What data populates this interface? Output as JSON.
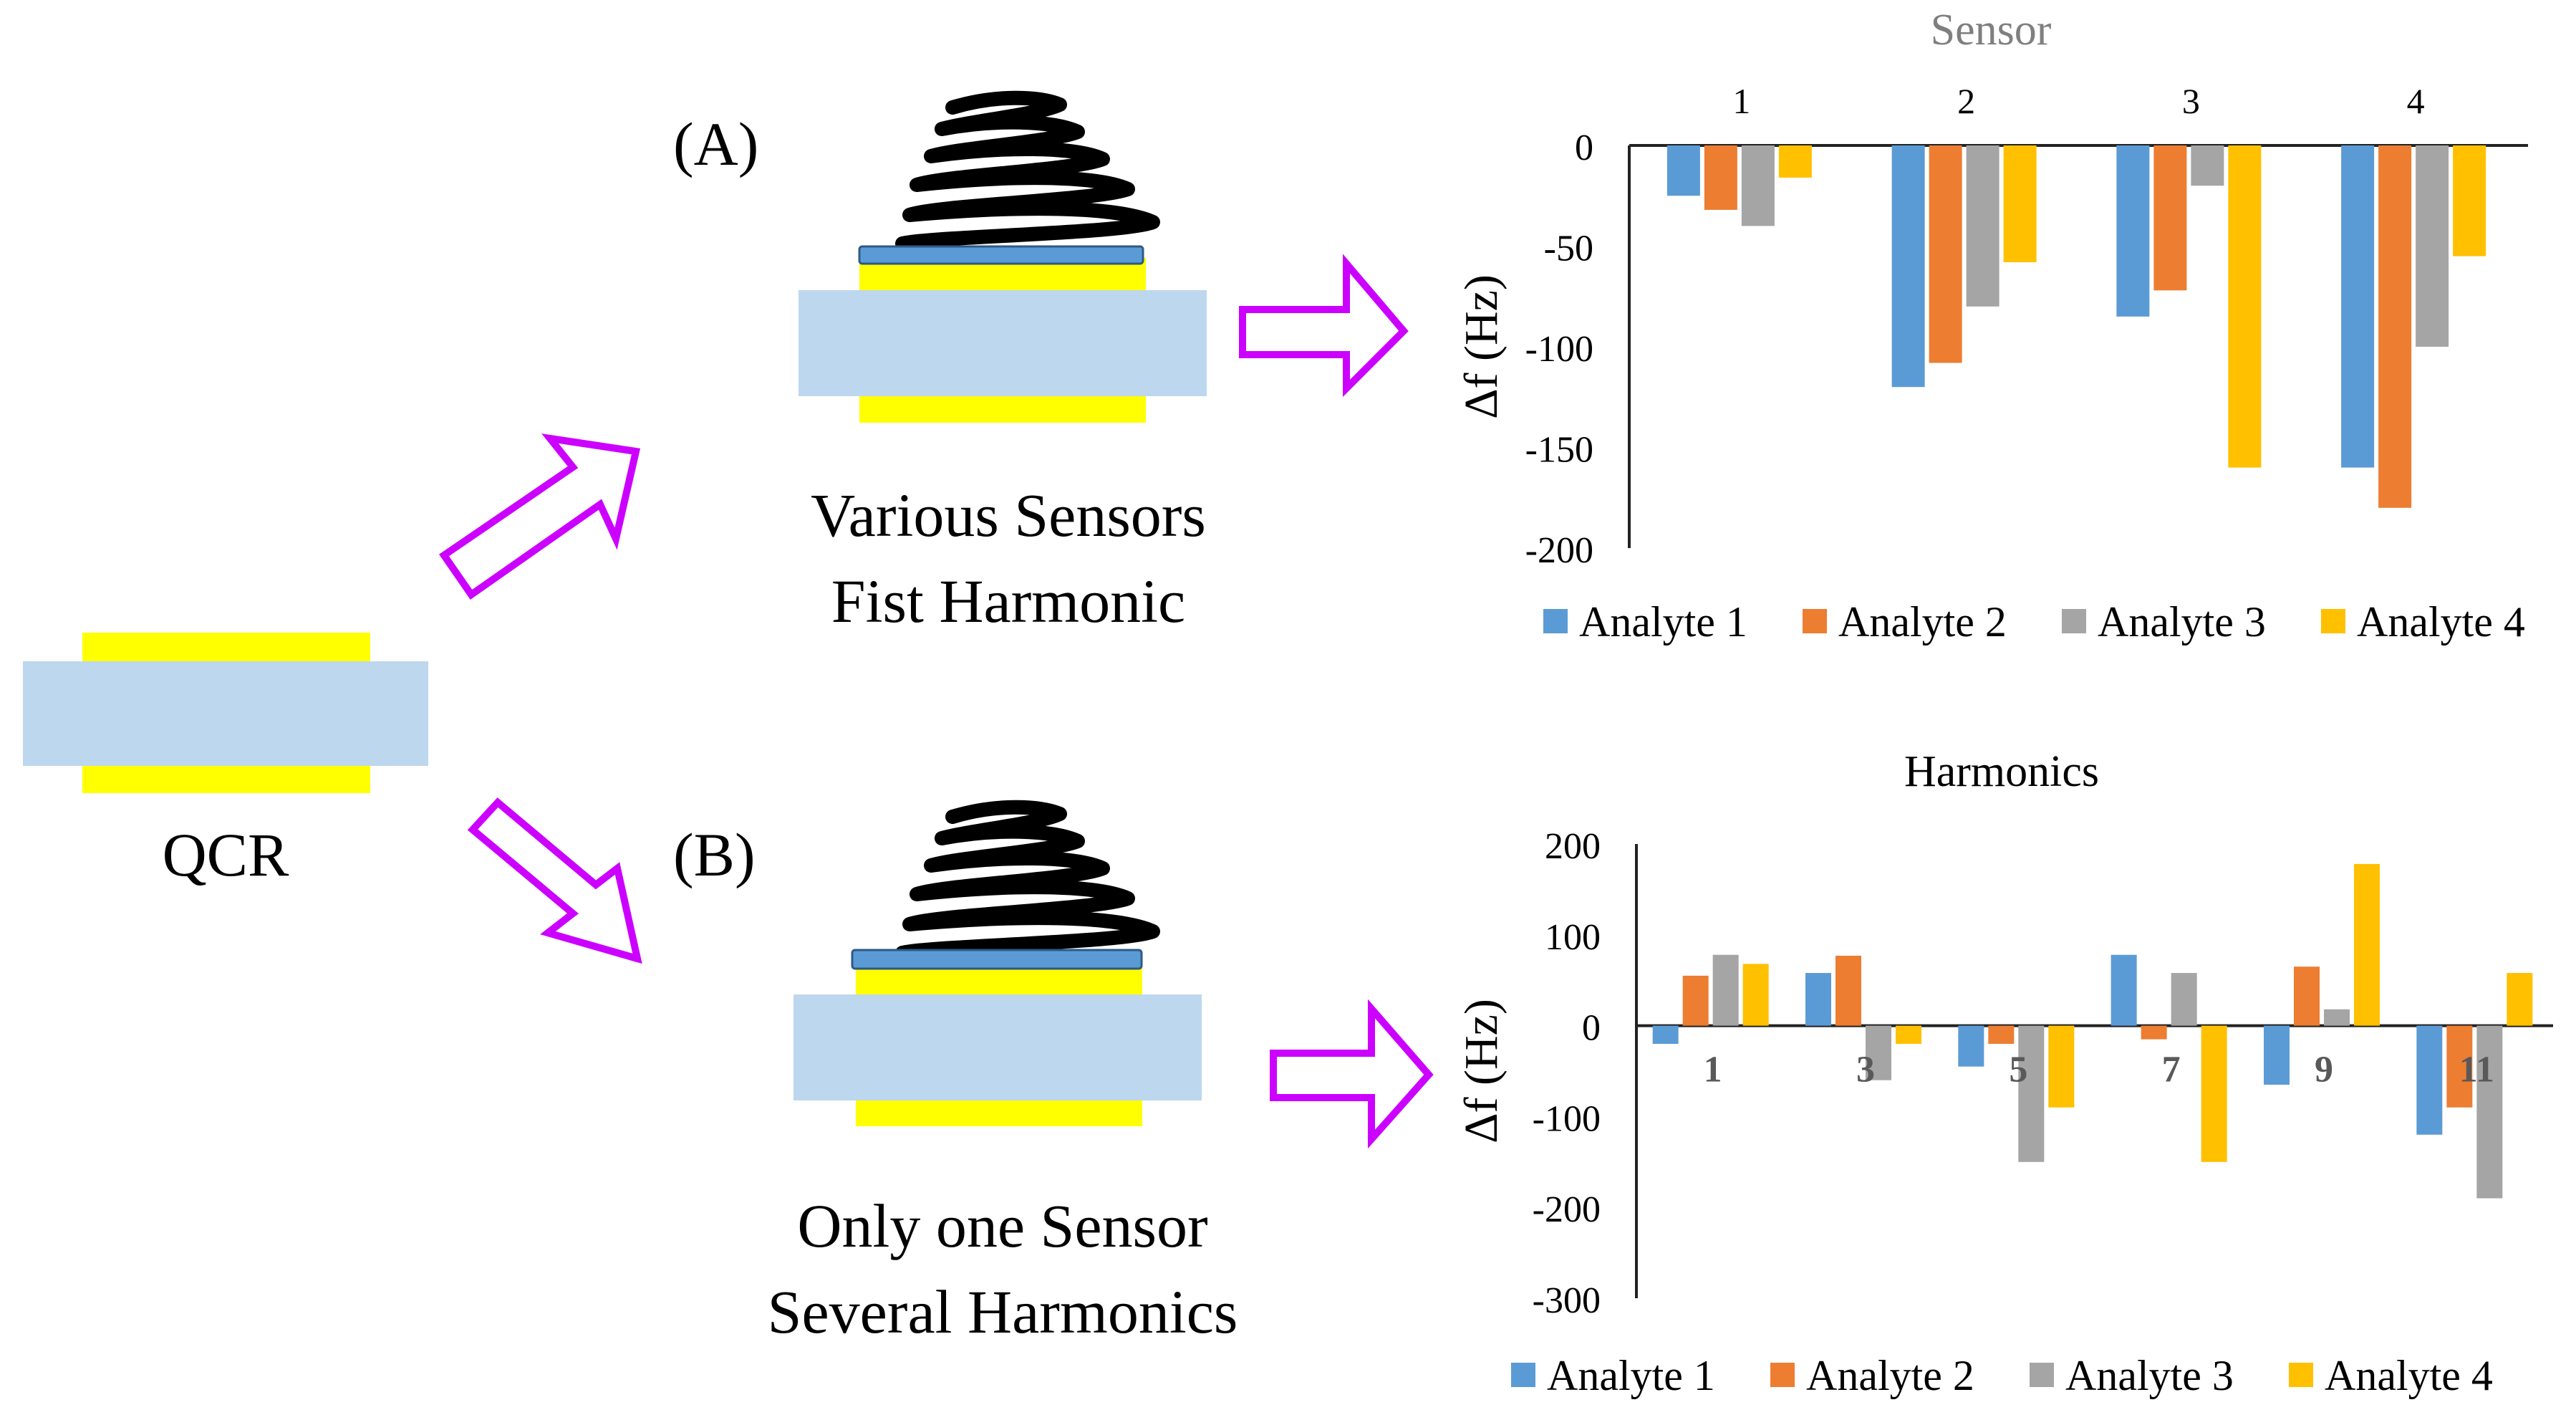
{
  "diagram": {
    "qcr_label": "QCR",
    "panel_a": {
      "tag": "(A)",
      "caption_line1": "Various Sensors",
      "caption_line2": "Fist Harmonic"
    },
    "panel_b": {
      "tag": "(B)",
      "caption_line1": "Only one Sensor",
      "caption_line2": "Several Harmonics"
    },
    "colors": {
      "crystal": "#bdd7ee",
      "electrode": "#ffff00",
      "coating": "#5b9bd5",
      "arrow": "#cc00ff",
      "coil": "#000000"
    }
  },
  "chart_data": [
    {
      "type": "bar",
      "title": "Sensor",
      "categories": [
        "1",
        "2",
        "3",
        "4"
      ],
      "ylabel": "Δf (Hz)",
      "ylim": [
        -200,
        0
      ],
      "yticks": [
        0,
        -50,
        -100,
        -150,
        -200
      ],
      "x_axis_position": "top",
      "legend_position": "bottom",
      "series": [
        {
          "name": "Analyte 1",
          "color": "#5b9bd5",
          "values": [
            -25,
            -120,
            -85,
            -160
          ]
        },
        {
          "name": "Analyte 2",
          "color": "#ed7d31",
          "values": [
            -32,
            -108,
            -72,
            -180
          ]
        },
        {
          "name": "Analyte 3",
          "color": "#a5a5a5",
          "values": [
            -40,
            -80,
            -20,
            -100
          ]
        },
        {
          "name": "Analyte 4",
          "color": "#ffc000",
          "values": [
            -16,
            -58,
            -160,
            -55
          ]
        }
      ]
    },
    {
      "type": "bar",
      "title": "Harmonics",
      "categories": [
        "1",
        "3",
        "5",
        "7",
        "9",
        "11"
      ],
      "ylabel": "Δf (Hz)",
      "ylim": [
        -300,
        200
      ],
      "yticks": [
        200,
        100,
        0,
        -100,
        -200,
        -300
      ],
      "x_axis_position": "zero-line",
      "legend_position": "bottom",
      "series": [
        {
          "name": "Analyte 1",
          "color": "#5b9bd5",
          "values": [
            -20,
            58,
            -45,
            78,
            -65,
            -120
          ]
        },
        {
          "name": "Analyte 2",
          "color": "#ed7d31",
          "values": [
            55,
            77,
            -20,
            -15,
            65,
            -90
          ]
        },
        {
          "name": "Analyte 3",
          "color": "#a5a5a5",
          "values": [
            78,
            -60,
            -150,
            58,
            18,
            -190
          ]
        },
        {
          "name": "Analyte 4",
          "color": "#ffc000",
          "values": [
            68,
            -20,
            -90,
            -150,
            178,
            58
          ]
        }
      ]
    }
  ]
}
